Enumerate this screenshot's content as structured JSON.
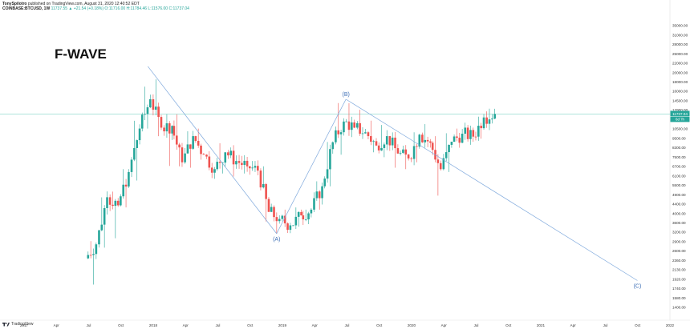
{
  "header": {
    "publisher": "TonySpilotro",
    "published_text": "published on TradingView.com, August 31, 2020 12:40:52 EDT",
    "symbol": "COINBASE:BTCUSD, 1W",
    "ohlc": "11737.55 ▲ +21.54 (+0.18%) O:11716.00 H:11784.46 L:11576.00 C:11737.04"
  },
  "title": "F-WAVE",
  "footer": {
    "brand": "TradingView"
  },
  "colors": {
    "up": "#26a69a",
    "down": "#ef5350",
    "wave_line": "#7ea8dc",
    "price_line": "#7fd4c8",
    "price_tag": "#26a69a"
  },
  "price_tags": {
    "current": "11737.04",
    "countdown": "6d 7h"
  },
  "chart_data": {
    "type": "candlestick",
    "y_scale": "log",
    "y_axis_labels": [
      "35000.00",
      "31000.00",
      "28000.00",
      "25000.00",
      "22000.00",
      "20000.00",
      "18000.00",
      "16000.00",
      "14500.00",
      "12900.00",
      "11800.00",
      "10500.00",
      "9500.00",
      "8300.00",
      "7500.00",
      "6700.00",
      "6100.00",
      "5500.00",
      "4900.00",
      "4400.00",
      "4000.00",
      "3600.00",
      "3200.00",
      "2900.00",
      "2600.00",
      "2360.00",
      "2130.00",
      "1920.00",
      "1740.00",
      "1580.00",
      "1400.00"
    ],
    "x_axis_labels": [
      "2017",
      "Apr",
      "Jul",
      "Oct",
      "2018",
      "Apr",
      "Jul",
      "Oct",
      "2019",
      "Apr",
      "Jul",
      "Oct",
      "2020",
      "Apr",
      "Jul",
      "Oct",
      "2021",
      "Apr",
      "Jul",
      "Oct",
      "2022"
    ],
    "wave_points": [
      {
        "label": "",
        "date": "2017-12-17",
        "price": 19800
      },
      {
        "label": "(A)",
        "date": "2018-12-16",
        "price": 3150
      },
      {
        "label": "(B)",
        "date": "2019-06-30",
        "price": 13800
      },
      {
        "label": "(C)",
        "date": "2021-10-01",
        "price": 1880
      }
    ],
    "current_price": 11737.04,
    "candles_monthly_approx": [
      {
        "date": "2017-07",
        "o": 2400,
        "h": 2900,
        "l": 1800,
        "c": 2800
      },
      {
        "date": "2017-08",
        "o": 2800,
        "h": 4800,
        "l": 2700,
        "c": 4700
      },
      {
        "date": "2017-09",
        "o": 4700,
        "h": 5000,
        "l": 2950,
        "c": 4300
      },
      {
        "date": "2017-10",
        "o": 4300,
        "h": 6400,
        "l": 4200,
        "c": 6200
      },
      {
        "date": "2017-11",
        "o": 6200,
        "h": 11300,
        "l": 5500,
        "c": 10000
      },
      {
        "date": "2017-12",
        "o": 10000,
        "h": 19800,
        "l": 10000,
        "c": 13800
      },
      {
        "date": "2018-01",
        "o": 13800,
        "h": 17200,
        "l": 9200,
        "c": 10100
      },
      {
        "date": "2018-02",
        "o": 10100,
        "h": 11700,
        "l": 6000,
        "c": 10300
      },
      {
        "date": "2018-03",
        "o": 10300,
        "h": 11700,
        "l": 6600,
        "c": 6900
      },
      {
        "date": "2018-04",
        "o": 6900,
        "h": 9700,
        "l": 6500,
        "c": 9200
      },
      {
        "date": "2018-05",
        "o": 9200,
        "h": 10000,
        "l": 7100,
        "c": 7500
      },
      {
        "date": "2018-06",
        "o": 7500,
        "h": 7800,
        "l": 5800,
        "c": 6400
      },
      {
        "date": "2018-07",
        "o": 6400,
        "h": 8500,
        "l": 6100,
        "c": 7700
      },
      {
        "date": "2018-08",
        "o": 7700,
        "h": 7800,
        "l": 5900,
        "c": 7000
      },
      {
        "date": "2018-09",
        "o": 7000,
        "h": 7400,
        "l": 6100,
        "c": 6600
      },
      {
        "date": "2018-10",
        "o": 6600,
        "h": 7000,
        "l": 6200,
        "c": 6300
      },
      {
        "date": "2018-11",
        "o": 6300,
        "h": 6600,
        "l": 3600,
        "c": 4000
      },
      {
        "date": "2018-12",
        "o": 4000,
        "h": 4300,
        "l": 3150,
        "c": 3700
      },
      {
        "date": "2019-01",
        "o": 3700,
        "h": 4100,
        "l": 3400,
        "c": 3450
      },
      {
        "date": "2019-02",
        "o": 3450,
        "h": 4200,
        "l": 3400,
        "c": 3850
      },
      {
        "date": "2019-03",
        "o": 3850,
        "h": 4100,
        "l": 3700,
        "c": 4100
      },
      {
        "date": "2019-04",
        "o": 4100,
        "h": 5600,
        "l": 4100,
        "c": 5300
      },
      {
        "date": "2019-05",
        "o": 5300,
        "h": 9100,
        "l": 5300,
        "c": 8600
      },
      {
        "date": "2019-06",
        "o": 8600,
        "h": 13800,
        "l": 7500,
        "c": 10800
      },
      {
        "date": "2019-07",
        "o": 10800,
        "h": 13200,
        "l": 9100,
        "c": 10100
      },
      {
        "date": "2019-08",
        "o": 10100,
        "h": 12300,
        "l": 9500,
        "c": 9600
      },
      {
        "date": "2019-09",
        "o": 9600,
        "h": 10900,
        "l": 7700,
        "c": 8300
      },
      {
        "date": "2019-10",
        "o": 8300,
        "h": 10400,
        "l": 7300,
        "c": 9200
      },
      {
        "date": "2019-11",
        "o": 9200,
        "h": 9500,
        "l": 6500,
        "c": 7600
      },
      {
        "date": "2019-12",
        "o": 7600,
        "h": 7800,
        "l": 6400,
        "c": 7200
      },
      {
        "date": "2020-01",
        "o": 7200,
        "h": 9600,
        "l": 6900,
        "c": 9350
      },
      {
        "date": "2020-02",
        "o": 9350,
        "h": 10500,
        "l": 8500,
        "c": 8550
      },
      {
        "date": "2020-03",
        "o": 8550,
        "h": 9200,
        "l": 3850,
        "c": 6400
      },
      {
        "date": "2020-04",
        "o": 6400,
        "h": 9500,
        "l": 6200,
        "c": 8650
      },
      {
        "date": "2020-05",
        "o": 8650,
        "h": 10000,
        "l": 8100,
        "c": 9450
      },
      {
        "date": "2020-06",
        "o": 9450,
        "h": 10400,
        "l": 8900,
        "c": 9150
      },
      {
        "date": "2020-07",
        "o": 9150,
        "h": 11400,
        "l": 8950,
        "c": 11300
      },
      {
        "date": "2020-08",
        "o": 11300,
        "h": 12450,
        "l": 10600,
        "c": 11737
      }
    ]
  }
}
